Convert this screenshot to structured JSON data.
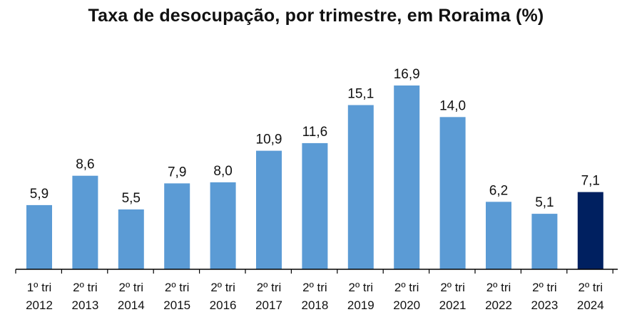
{
  "chart_data": {
    "type": "bar",
    "title": "Taxa de desocupação, por trimestre, em Roraima (%)",
    "categories": [
      [
        "1º tri",
        "2012"
      ],
      [
        "2º tri",
        "2013"
      ],
      [
        "2º tri",
        "2014"
      ],
      [
        "2º tri",
        "2015"
      ],
      [
        "2º tri",
        "2016"
      ],
      [
        "2º tri",
        "2017"
      ],
      [
        "2º tri",
        "2018"
      ],
      [
        "2º tri",
        "2019"
      ],
      [
        "2º tri",
        "2020"
      ],
      [
        "2º tri",
        "2021"
      ],
      [
        "2º tri",
        "2022"
      ],
      [
        "2º tri",
        "2023"
      ],
      [
        "2º tri",
        "2024"
      ]
    ],
    "values": [
      5.9,
      8.6,
      5.5,
      7.9,
      8.0,
      10.9,
      11.6,
      15.1,
      16.9,
      14.0,
      6.2,
      5.1,
      7.1
    ],
    "value_labels": [
      "5,9",
      "8,6",
      "5,5",
      "7,9",
      "8,0",
      "10,9",
      "11,6",
      "15,1",
      "16,9",
      "14,0",
      "6,2",
      "5,1",
      "7,1"
    ],
    "ylim": [
      0,
      16.9
    ],
    "grid": false,
    "legend": "none",
    "colors": {
      "bar": "#5b9bd5",
      "highlight_bar": "#002060",
      "axis": "#000000"
    },
    "highlight_index": 12
  }
}
